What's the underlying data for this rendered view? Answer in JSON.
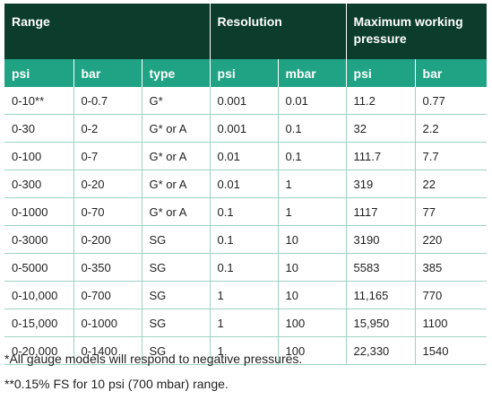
{
  "table": {
    "group_headers": [
      "Range",
      "Resolution",
      "Maximum working pressure"
    ],
    "column_headers": [
      "psi",
      "bar",
      "type",
      "psi",
      "mbar",
      "psi",
      "bar"
    ],
    "rows": [
      [
        "0-10**",
        "0-0.7",
        "G*",
        "0.001",
        "0.01",
        "11.2",
        "0.77"
      ],
      [
        "0-30",
        "0-2",
        "G* or A",
        "0.001",
        "0.1",
        "32",
        "2.2"
      ],
      [
        "0-100",
        "0-7",
        "G* or A",
        "0.01",
        "0.1",
        "111.7",
        "7.7"
      ],
      [
        "0-300",
        "0-20",
        "G* or A",
        "0.01",
        "1",
        "319",
        "22"
      ],
      [
        "0-1000",
        "0-70",
        "G* or A",
        "0.1",
        "1",
        "1117",
        "77"
      ],
      [
        "0-3000",
        "0-200",
        "SG",
        "0.1",
        "10",
        "3190",
        "220"
      ],
      [
        "0-5000",
        "0-350",
        "SG",
        "0.1",
        "10",
        "5583",
        "385"
      ],
      [
        "0-10,000",
        "0-700",
        "SG",
        "1",
        "10",
        "11,165",
        "770"
      ],
      [
        "0-15,000",
        "0-1000",
        "SG",
        "1",
        "100",
        "15,950",
        "1100"
      ],
      [
        "0-20,000",
        "0-1400",
        "SG",
        "1",
        "100",
        "22,330",
        "1540"
      ]
    ]
  },
  "notes": [
    "*All gauge models will respond to negative pressures.",
    "**0.15% FS for 10 psi (700 mbar) range."
  ],
  "colors": {
    "group_header_bg": "#0c3c2b",
    "column_header_bg": "#20a384",
    "row_divider": "#9fd2c3"
  }
}
